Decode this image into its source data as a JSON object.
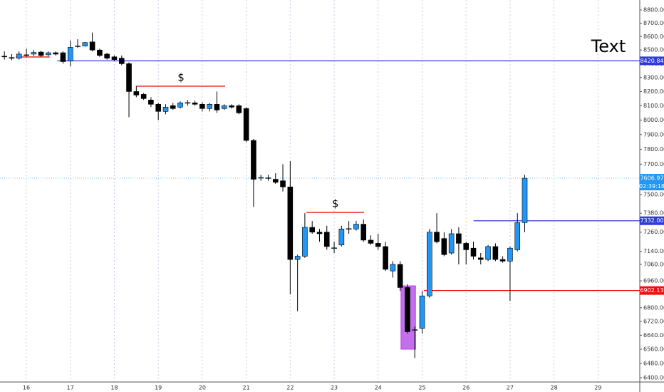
{
  "chart_data": {
    "type": "candlestick",
    "log_scale": true,
    "grid": true,
    "up_color": "#2196f3",
    "down_color": "#000000",
    "xlim": [
      15.4,
      29.95
    ],
    "xticks": [
      16,
      17,
      18,
      19,
      20,
      21,
      22,
      23,
      24,
      25,
      26,
      27,
      28,
      29
    ],
    "ylim": [
      6400,
      8800
    ],
    "yticks": [
      {
        "value": 8800,
        "label": "8800.00"
      },
      {
        "value": 8700,
        "label": "8700.00"
      },
      {
        "value": 8600,
        "label": "8600.00"
      },
      {
        "value": 8500,
        "label": "8500.00"
      },
      {
        "value": 8400,
        "label": "8400.00"
      },
      {
        "value": 8300,
        "label": "8300.00"
      },
      {
        "value": 8200,
        "label": "8200.00"
      },
      {
        "value": 8100,
        "label": "8100.00"
      },
      {
        "value": 8000,
        "label": "8000.00"
      },
      {
        "value": 7900,
        "label": "7900.00"
      },
      {
        "value": 7800,
        "label": "7800.00"
      },
      {
        "value": 7700,
        "label": "7700.00"
      },
      {
        "value": 7500,
        "label": "7500.00"
      },
      {
        "value": 7380,
        "label": "7380.00"
      },
      {
        "value": 7260,
        "label": "7260.00"
      },
      {
        "value": 7140,
        "label": "7140.00"
      },
      {
        "value": 7060,
        "label": "7060.00"
      },
      {
        "value": 6960,
        "label": "6960.00"
      },
      {
        "value": 6800,
        "label": "6800.00"
      },
      {
        "value": 6720,
        "label": "6720.00"
      },
      {
        "value": 6640,
        "label": "6640.00"
      },
      {
        "value": 6560,
        "label": "6560.00"
      },
      {
        "value": 6480,
        "label": "6480.00"
      },
      {
        "value": 6400,
        "label": "6400.00"
      }
    ],
    "x": [
      15.5,
      15.667,
      15.833,
      16,
      16.167,
      16.333,
      16.5,
      16.667,
      16.833,
      17,
      17.167,
      17.333,
      17.5,
      17.667,
      17.833,
      18,
      18.167,
      18.333,
      18.5,
      18.667,
      18.833,
      19,
      19.167,
      19.333,
      19.5,
      19.667,
      19.833,
      20,
      20.167,
      20.333,
      20.5,
      20.667,
      20.833,
      21,
      21.167,
      21.333,
      21.5,
      21.667,
      21.833,
      22,
      22.167,
      22.333,
      22.5,
      22.667,
      22.833,
      23,
      23.167,
      23.333,
      23.5,
      23.667,
      23.833,
      24,
      24.167,
      24.333,
      24.5,
      24.667,
      24.833,
      25,
      25.167,
      25.333,
      25.5,
      25.667,
      25.833,
      26,
      26.167,
      26.333,
      26.5,
      26.667,
      26.833,
      27,
      27.167,
      27.333
    ],
    "open": [
      8455,
      8445,
      8440,
      8465,
      8470,
      8485,
      8465,
      8480,
      8480,
      8420,
      8525,
      8530,
      8560,
      8500,
      8470,
      8450,
      8440,
      8400,
      8200,
      8180,
      8140,
      8110,
      8060,
      8100,
      8090,
      8118,
      8120,
      8110,
      8080,
      8110,
      8080,
      8100,
      8100,
      8080,
      7860,
      7610,
      7608,
      7600,
      7590,
      7550,
      7090,
      7110,
      7290,
      7260,
      7260,
      7160,
      7180,
      7278,
      7280,
      7310,
      7210,
      7190,
      7170,
      7020,
      7060,
      6920,
      6668,
      6680,
      6870,
      7260,
      7220,
      7130,
      7250,
      7190,
      7160,
      7100,
      7090,
      7170,
      7090,
      7080,
      7150,
      7320
    ],
    "high": [
      8490,
      8470,
      8490,
      8510,
      8500,
      8495,
      8490,
      8490,
      8490,
      8570,
      8580,
      8560,
      8630,
      8510,
      8480,
      8460,
      8460,
      8410,
      8240,
      8190,
      8160,
      8120,
      8110,
      8120,
      8130,
      8140,
      8135,
      8125,
      8120,
      8200,
      8110,
      8110,
      8110,
      8090,
      7870,
      7630,
      7630,
      7640,
      7700,
      7720,
      7120,
      7380,
      7330,
      7280,
      7300,
      7200,
      7300,
      7330,
      7330,
      7340,
      7240,
      7250,
      7200,
      7080,
      7080,
      6940,
      6690,
      6900,
      7280,
      7380,
      7260,
      7280,
      7290,
      7200,
      7200,
      7130,
      7180,
      7190,
      7110,
      7170,
      7380,
      7630
    ],
    "low": [
      8430,
      8425,
      8430,
      8450,
      8455,
      8450,
      8455,
      8460,
      8400,
      8380,
      8515,
      8525,
      8490,
      8450,
      8430,
      8420,
      8390,
      8020,
      8160,
      8140,
      8090,
      8000,
      8040,
      8070,
      8080,
      8100,
      8100,
      8060,
      8060,
      8050,
      8070,
      8080,
      8040,
      7850,
      7420,
      7590,
      7590,
      7570,
      7520,
      6880,
      6780,
      7100,
      7250,
      7200,
      7150,
      7130,
      7170,
      7250,
      7270,
      7200,
      7180,
      7150,
      7020,
      6980,
      6900,
      6650,
      6510,
      6650,
      6860,
      7190,
      7110,
      7120,
      7060,
      7060,
      7090,
      7060,
      7080,
      7080,
      7070,
      6840,
      7140,
      7260
    ],
    "close": [
      8450,
      8440,
      8470,
      8462,
      8482,
      8460,
      8480,
      8470,
      8415,
      8520,
      8530,
      8555,
      8500,
      8460,
      8440,
      8430,
      8400,
      8200,
      8175,
      8150,
      8110,
      8060,
      8090,
      8080,
      8120,
      8122,
      8110,
      8080,
      8110,
      8070,
      8100,
      8090,
      8050,
      7860,
      7600,
      7612,
      7610,
      7580,
      7550,
      7090,
      7110,
      7290,
      7260,
      7250,
      7170,
      7162,
      7280,
      7282,
      7310,
      7210,
      7190,
      7170,
      7030,
      7060,
      6920,
      6660,
      6672,
      6870,
      7260,
      7200,
      7120,
      7250,
      7190,
      7150,
      7110,
      7090,
      7170,
      7090,
      7080,
      7160,
      7320,
      7607
    ],
    "hlines": [
      {
        "value": 8420.84,
        "label": "8420.84",
        "color": "#2f3bd8",
        "x": [
          16.7,
          29.95
        ]
      },
      {
        "value": 7606.97,
        "label": "7606.97",
        "color": "#2196f3",
        "dotted": true,
        "countdown": "02:39:18"
      },
      {
        "value": 7332,
        "label": "7332.00",
        "color": "#2f3bd8",
        "x": [
          26.17,
          29.95
        ]
      },
      {
        "value": 6902.13,
        "label": "6902.13",
        "color": "#f01010",
        "x": [
          25.04,
          29.95
        ]
      },
      {
        "value": 8449,
        "color": "#f01010",
        "x": [
          15.76,
          16.53
        ]
      },
      {
        "value": 8238,
        "color": "#f01010",
        "x": [
          18.51,
          20.52
        ],
        "note": "$"
      },
      {
        "value": 7385,
        "color": "#f01010",
        "x": [
          22.37,
          23.68
        ],
        "note": "$"
      }
    ],
    "highlight": {
      "x": [
        24.52,
        24.85
      ],
      "y": [
        6560,
        6930
      ],
      "color": "#b040e8"
    },
    "text_note": "Text"
  }
}
